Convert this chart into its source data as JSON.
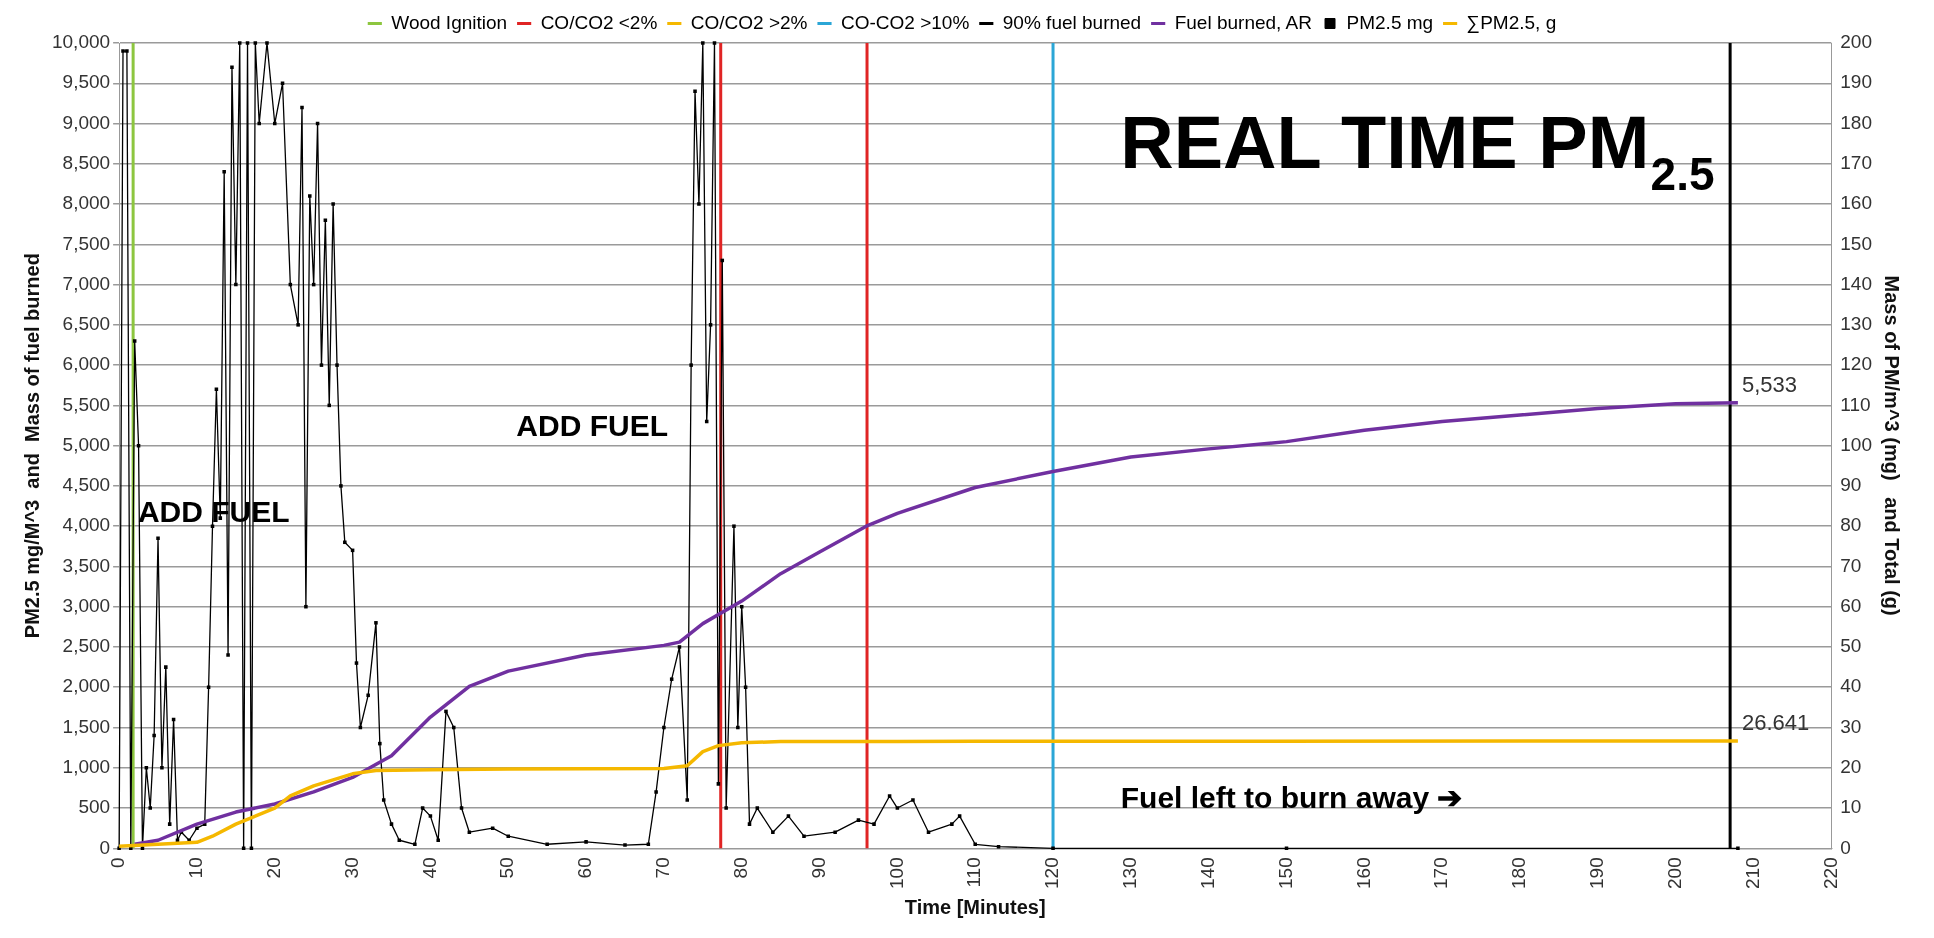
{
  "chart_data": {
    "type": "line",
    "title": "REAL TIME PM$_{2.5}$",
    "xlabel": "Time [Minutes]",
    "ylabel": "PM2.5 mg/M^3  and  Mass of fuel burned",
    "y2label": "Mass of PM/m^3 (mg)   and Total (g)",
    "xlim": [
      0,
      220
    ],
    "xticks": [
      0,
      10,
      20,
      30,
      40,
      50,
      60,
      70,
      80,
      90,
      100,
      110,
      120,
      130,
      140,
      150,
      160,
      170,
      180,
      190,
      200,
      210,
      220
    ],
    "ylim": [
      0,
      10000
    ],
    "yticks": [
      {
        "value": 0,
        "label": "0"
      },
      {
        "value": 500,
        "label": "500"
      },
      {
        "value": 1000,
        "label": "1,000"
      },
      {
        "value": 1500,
        "label": "1,500"
      },
      {
        "value": 2000,
        "label": "2,000"
      },
      {
        "value": 2500,
        "label": "2,500"
      },
      {
        "value": 3000,
        "label": "3,000"
      },
      {
        "value": 3500,
        "label": "3,500"
      },
      {
        "value": 4000,
        "label": "4,000"
      },
      {
        "value": 4500,
        "label": "4,500"
      },
      {
        "value": 5000,
        "label": "5,000"
      },
      {
        "value": 5500,
        "label": "5,500"
      },
      {
        "value": 6000,
        "label": "6,000"
      },
      {
        "value": 6500,
        "label": "6,500"
      },
      {
        "value": 7000,
        "label": "7,000"
      },
      {
        "value": 7500,
        "label": "7,500"
      },
      {
        "value": 8000,
        "label": "8,000"
      },
      {
        "value": 8500,
        "label": "8,500"
      },
      {
        "value": 9000,
        "label": "9,000"
      },
      {
        "value": 9500,
        "label": "9,500"
      },
      {
        "value": 10000,
        "label": "10,000"
      }
    ],
    "y2lim": [
      0,
      200
    ],
    "y2ticks": [
      0,
      10,
      20,
      30,
      40,
      50,
      60,
      70,
      80,
      90,
      100,
      110,
      120,
      130,
      140,
      150,
      160,
      170,
      180,
      190,
      200
    ],
    "grid": "y",
    "legend": "top",
    "ref_lines": [
      {
        "axis": "x",
        "value": 1.8,
        "label": "Wood Ignition",
        "color": "#8dc63f"
      },
      {
        "axis": "x",
        "value": 77.3,
        "label": "CO/CO2 <2%",
        "color": "#e02424"
      },
      {
        "axis": "x",
        "value": null,
        "label": "CO/CO2 >2%",
        "color": "#f5b800"
      },
      {
        "axis": "x",
        "value": 120,
        "label": "CO-CO2 >10%",
        "color": "#2ba6d6"
      },
      {
        "axis": "x",
        "value": 207,
        "label": "90% fuel burned",
        "color": "#000000"
      },
      {
        "axis": "x",
        "value": 96.1,
        "label": null,
        "color": "#e02424"
      }
    ],
    "series": [
      {
        "name": "Fuel burned, AR",
        "color": "#7030a0",
        "marker": "none",
        "x": [
          2,
          5,
          10,
          15,
          20,
          25,
          30,
          35,
          40,
          45,
          50,
          60,
          70,
          72,
          75,
          80,
          85,
          90,
          96,
          100,
          110,
          120,
          130,
          140,
          150,
          160,
          170,
          180,
          190,
          200,
          208
        ],
        "values": [
          50,
          100,
          300,
          450,
          550,
          700,
          880,
          1150,
          1630,
          2010,
          2200,
          2400,
          2520,
          2560,
          2790,
          3070,
          3410,
          3680,
          4000,
          4160,
          4480,
          4680,
          4860,
          4960,
          5050,
          5190,
          5300,
          5380,
          5460,
          5520,
          5533
        ],
        "value_labels": [
          null,
          null,
          null,
          null,
          null,
          null,
          null,
          null,
          null,
          null,
          null,
          null,
          null,
          null,
          null,
          null,
          null,
          null,
          null,
          null,
          null,
          null,
          null,
          null,
          null,
          null,
          null,
          null,
          null,
          null,
          "5,533"
        ]
      },
      {
        "name": "PM2.5 mg",
        "color": "#000000",
        "marker": "square",
        "x": [
          0,
          0.5,
          1,
          1.5,
          2,
          2.5,
          3,
          3.5,
          4,
          4.5,
          5,
          5.5,
          6,
          6.5,
          7,
          7.5,
          8,
          9,
          10,
          11,
          11.5,
          12,
          12.5,
          13,
          13.5,
          14,
          14.5,
          15,
          15.5,
          16,
          16.5,
          17,
          17.5,
          18,
          19,
          20,
          21,
          22,
          23,
          23.5,
          24,
          24.5,
          25,
          25.5,
          26,
          26.5,
          27,
          27.5,
          28,
          28.5,
          29,
          30,
          30.5,
          31,
          32,
          33,
          33.5,
          34,
          35,
          36,
          38,
          39,
          40,
          41,
          42,
          43,
          44,
          45,
          48,
          50,
          55,
          60,
          65,
          68,
          69,
          70,
          71,
          72,
          73,
          73.5,
          74,
          74.5,
          75,
          75.5,
          76,
          76.5,
          77,
          77.5,
          78,
          79,
          79.5,
          80,
          80.5,
          81,
          82,
          84,
          86,
          88,
          92,
          95,
          97,
          99,
          100,
          102,
          104,
          107,
          108,
          110,
          113,
          120,
          150,
          208
        ],
        "values": [
          0,
          9900,
          9900,
          0,
          6300,
          5000,
          0,
          1000,
          500,
          1400,
          3850,
          1000,
          2250,
          300,
          1600,
          100,
          200,
          100,
          250,
          300,
          2000,
          4000,
          5700,
          4100,
          8400,
          2400,
          9700,
          7000,
          10000,
          0,
          10000,
          0,
          10000,
          9000,
          10000,
          9000,
          9500,
          7000,
          6500,
          9200,
          3000,
          8100,
          7000,
          9000,
          6000,
          7800,
          5500,
          8000,
          6000,
          4500,
          3800,
          3700,
          2300,
          1500,
          1900,
          2800,
          1300,
          600,
          300,
          100,
          50,
          500,
          400,
          100,
          1700,
          1500,
          500,
          200,
          250,
          150,
          50,
          80,
          40,
          50,
          700,
          1500,
          2100,
          2500,
          600,
          6000,
          9400,
          8000,
          10000,
          5300,
          6500,
          10000,
          800,
          7300,
          500,
          4000,
          1500,
          3000,
          2000,
          300,
          500,
          200,
          400,
          150,
          200,
          350,
          300,
          650,
          500,
          600,
          200,
          300,
          400,
          50,
          20,
          0,
          0,
          0
        ]
      },
      {
        "name": "∑PM2.5, g",
        "color": "#f5b800",
        "marker": "none",
        "axis": "y2",
        "x": [
          0,
          10,
          12,
          15,
          20,
          22,
          25,
          30,
          33,
          40,
          50,
          70,
          73,
          75,
          77,
          80,
          85,
          100,
          110,
          208
        ],
        "values": [
          0.5,
          1.5,
          3,
          6,
          10,
          13,
          15.5,
          18.5,
          19.3,
          19.5,
          19.7,
          19.8,
          20.5,
          24,
          25.5,
          26.2,
          26.5,
          26.5,
          26.6,
          26.641
        ],
        "value_labels": [
          null,
          null,
          null,
          null,
          null,
          null,
          null,
          null,
          null,
          null,
          null,
          null,
          null,
          null,
          null,
          null,
          null,
          null,
          null,
          "26.641"
        ]
      }
    ],
    "annotations": [
      "ADD FUEL",
      "ADD FUEL",
      "Fuel left to burn away ➔"
    ]
  }
}
